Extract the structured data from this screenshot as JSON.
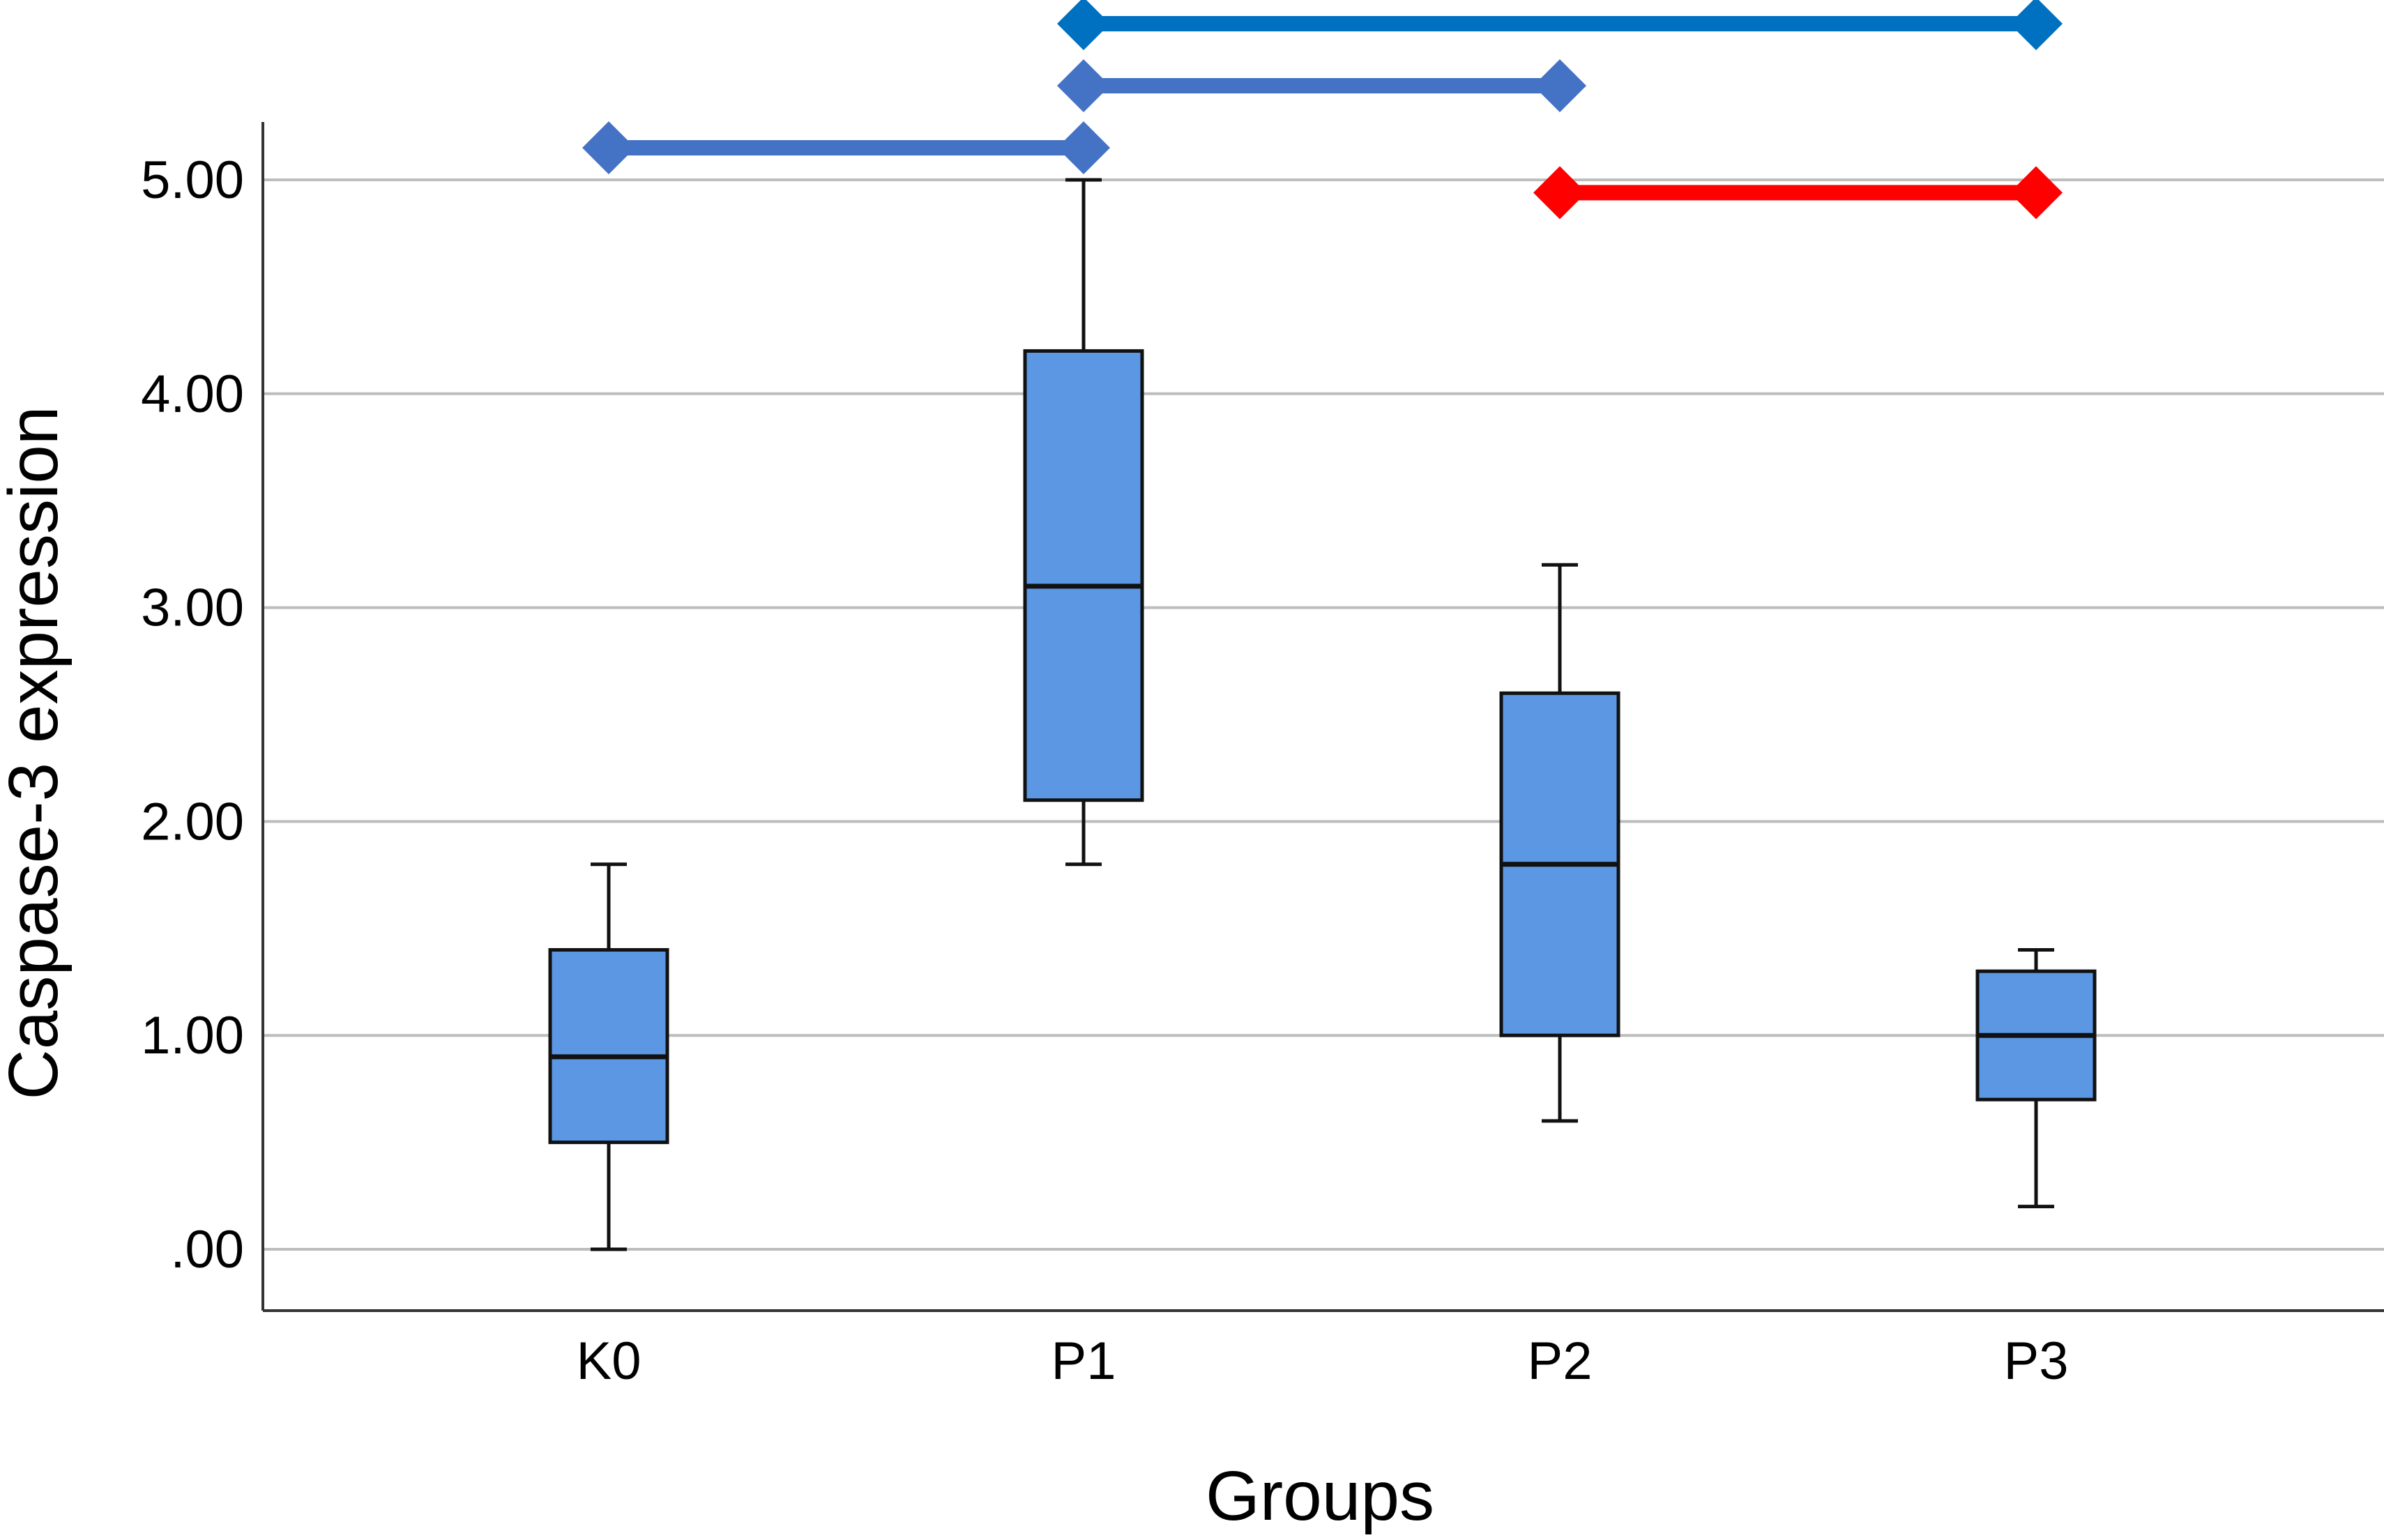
{
  "chart_data": {
    "type": "box",
    "xlabel": "Groups",
    "ylabel": "Caspase-3 expression",
    "ylim": [
      -0.28,
      5.52
    ],
    "yticks": [
      0,
      1,
      2,
      3,
      4,
      5
    ],
    "ytick_labels": [
      ".00",
      "1.00",
      "2.00",
      "3.00",
      "4.00",
      "5.00"
    ],
    "categories": [
      "K0",
      "P1",
      "P2",
      "P3"
    ],
    "box_color": "#5b97e3",
    "boxes": [
      {
        "category": "K0",
        "min": 0.0,
        "q1": 0.5,
        "median": 0.9,
        "q3": 1.4,
        "max": 1.8
      },
      {
        "category": "P1",
        "min": 1.8,
        "q1": 2.1,
        "median": 3.1,
        "q3": 4.2,
        "max": 5.0
      },
      {
        "category": "P2",
        "min": 0.6,
        "q1": 1.0,
        "median": 1.8,
        "q3": 2.6,
        "max": 3.2
      },
      {
        "category": "P3",
        "min": 0.2,
        "q1": 0.7,
        "median": 1.0,
        "q3": 1.3,
        "max": 1.4
      }
    ],
    "grid": true,
    "comparisons": [
      {
        "from": "K0",
        "to": "P1",
        "y": 5.15,
        "color": "#4472c4"
      },
      {
        "from": "P1",
        "to": "P2",
        "y": 5.44,
        "color": "#4472c4"
      },
      {
        "from": "P1",
        "to": "P3",
        "y": 5.73,
        "color": "#0070c0"
      },
      {
        "from": "P2",
        "to": "P3",
        "y": 4.94,
        "color": "#ff0000"
      }
    ]
  }
}
